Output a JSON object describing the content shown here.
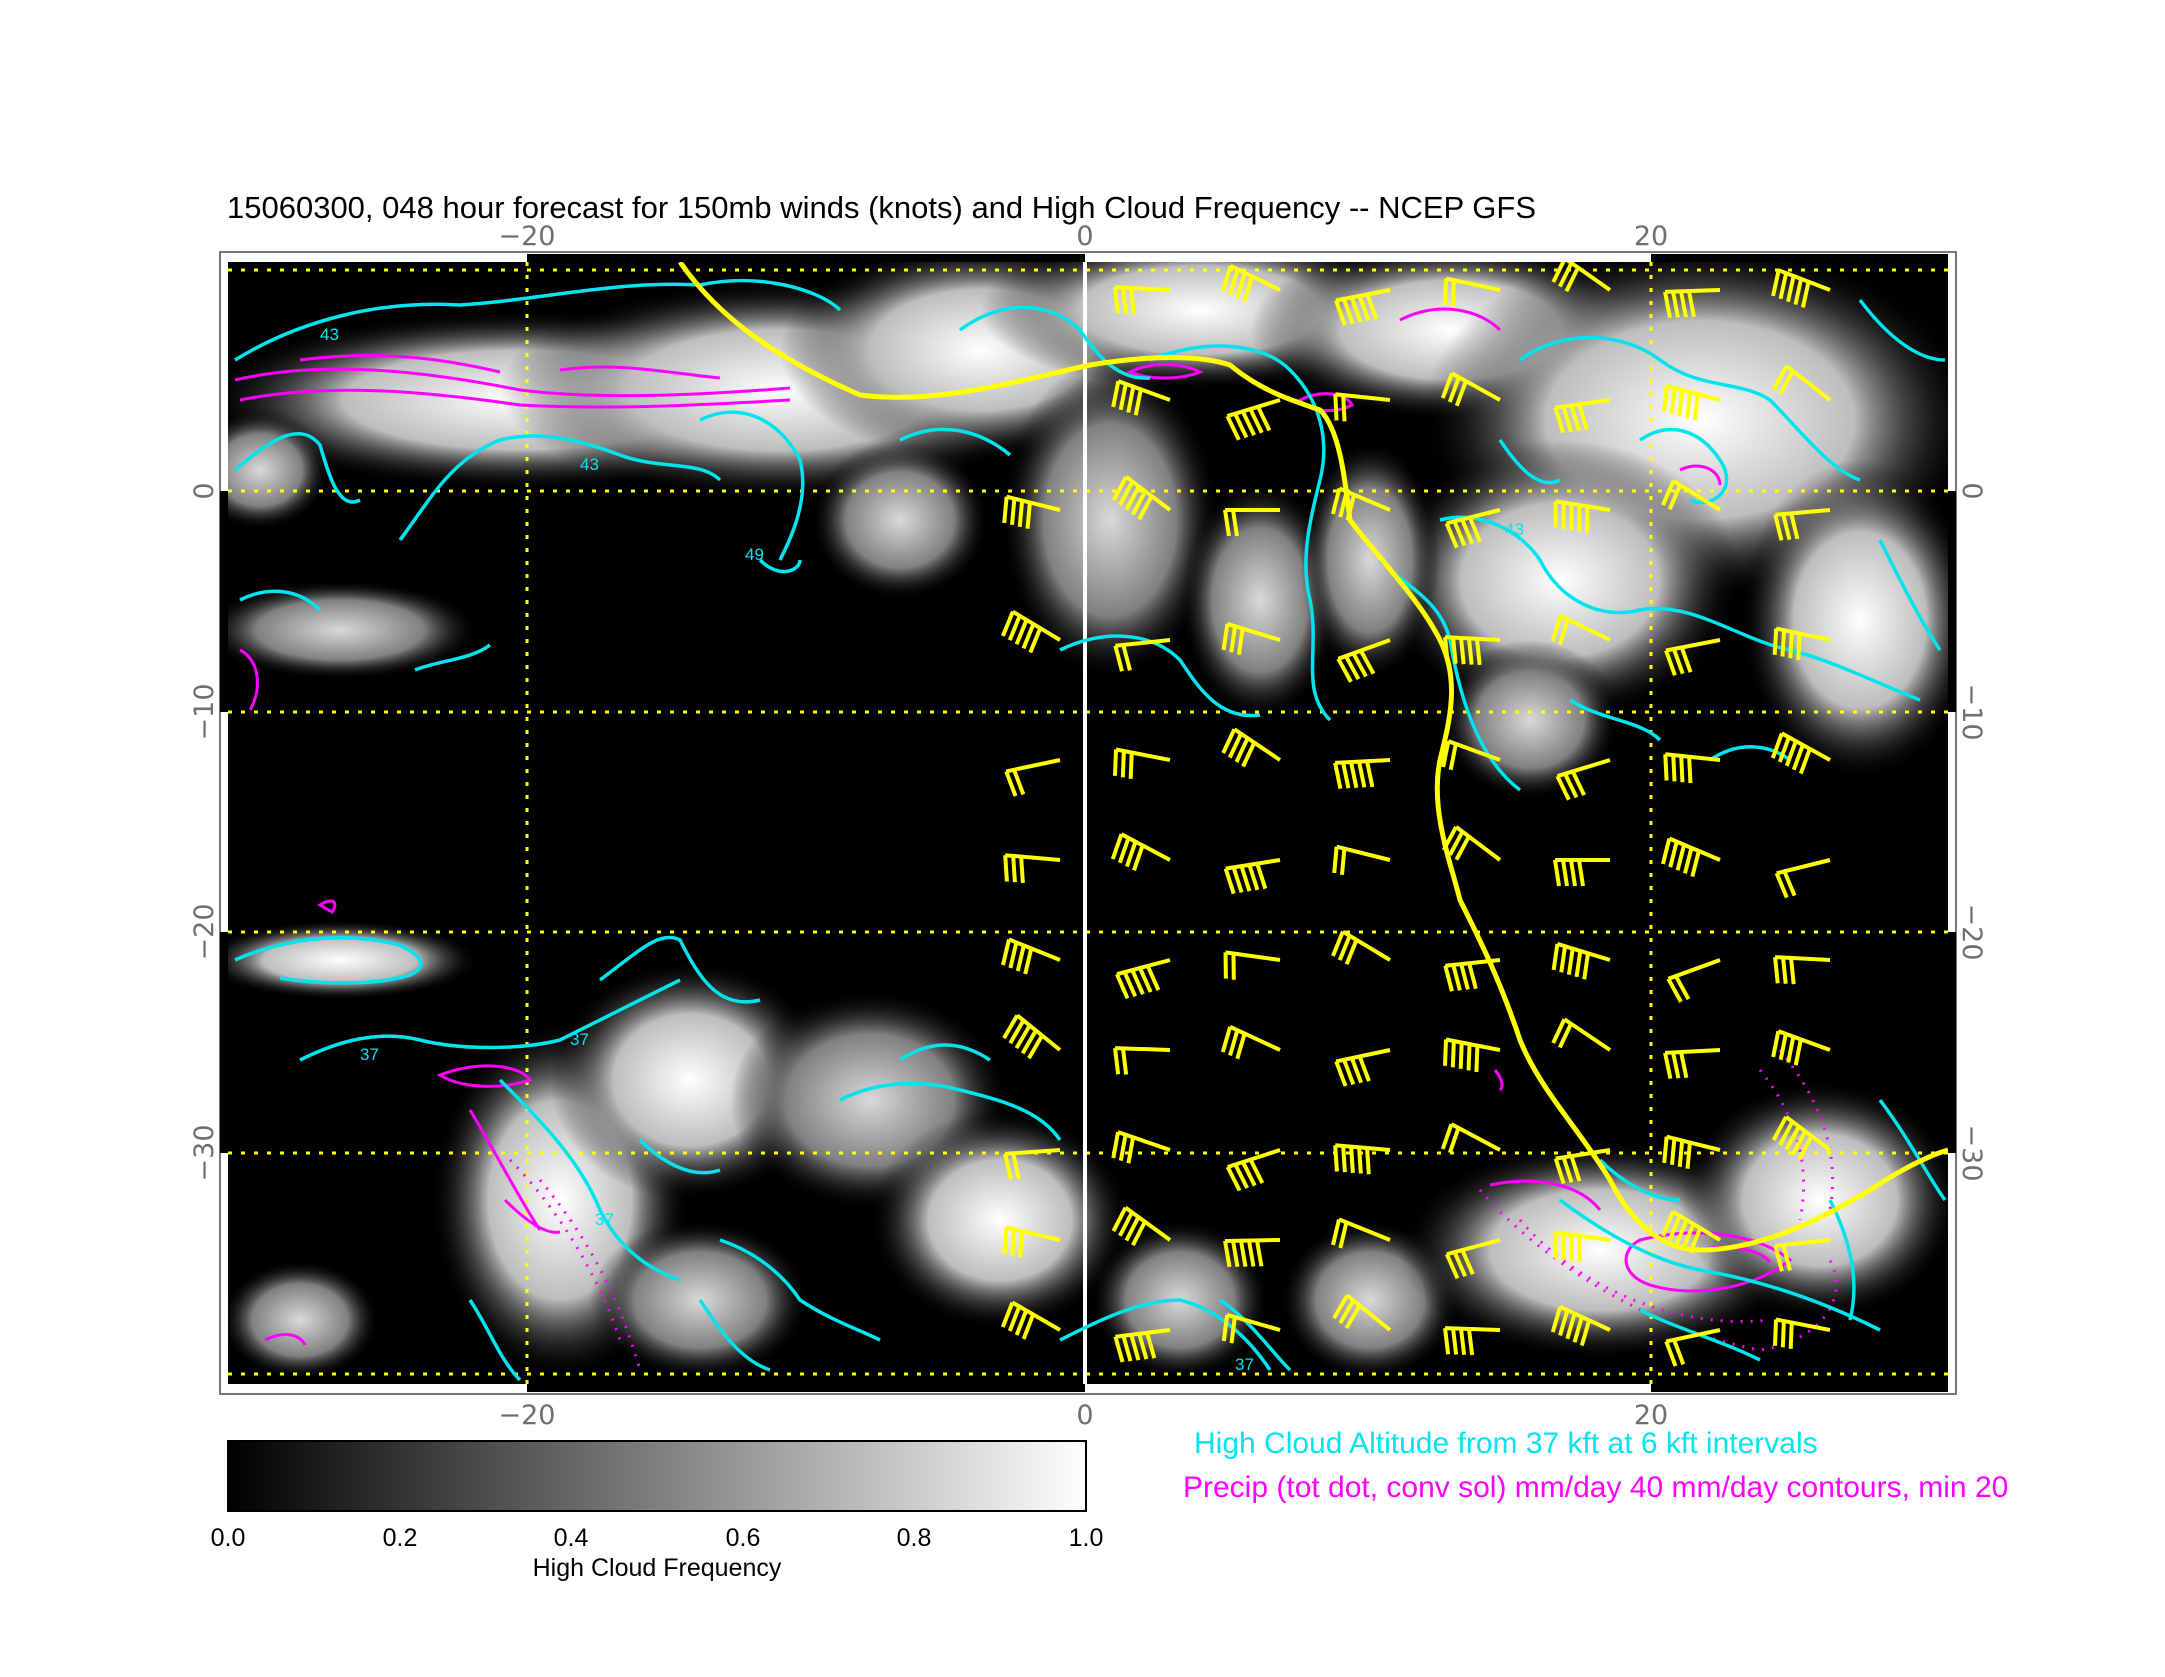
{
  "title": "15060300, 048 hour forecast for 150mb winds (knots) and High Cloud Frequency -- NCEP GFS",
  "map": {
    "lon_ticks": [
      "−20",
      "0",
      "20"
    ],
    "lat_ticks_left": [
      "0",
      "−10",
      "−20",
      "−30"
    ],
    "lat_ticks_right": [
      "0",
      "−10",
      "−20",
      "−30"
    ],
    "grid_color": "#ffff00",
    "contour_labels": [
      "43",
      "43",
      "49",
      "37",
      "37",
      "37",
      "43",
      "37"
    ]
  },
  "colorbar": {
    "label": "High Cloud Frequency",
    "ticks": [
      "0.0",
      "0.2",
      "0.4",
      "0.6",
      "0.8",
      "1.0"
    ],
    "range": [
      0.0,
      1.0
    ],
    "colors": [
      "#000000",
      "#ffffff"
    ]
  },
  "legend": {
    "cyan": "High Cloud Altitude from 37 kft at 6 kft intervals",
    "magenta": "Precip (tot dot, conv sol) mm/day 40 mm/day contours, min 20"
  },
  "colors": {
    "cloud_altitude": "#00e5ee",
    "precip": "#ff00ff",
    "winds": "#ffff00"
  }
}
